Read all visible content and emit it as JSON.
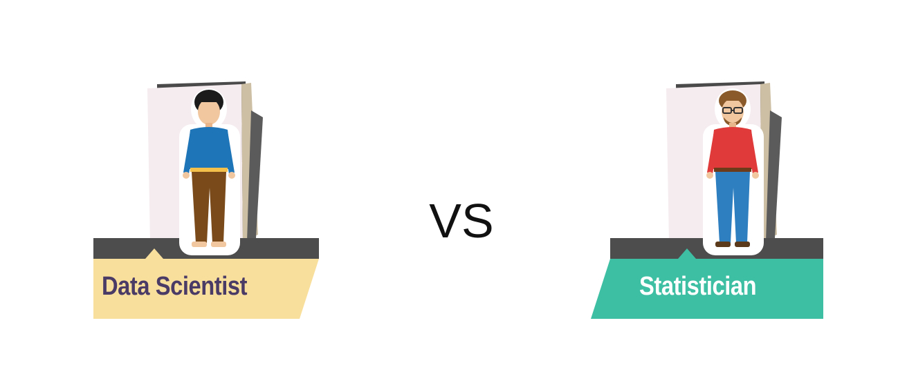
{
  "left_card": {
    "label": "Data Scientist",
    "label_bg": "#f9df9c",
    "label_color": "#4a3a66",
    "shirt_color": "#1e76b8",
    "pants_color": "#7a4a1a",
    "icon": "data-scientist-person-icon"
  },
  "separator": {
    "text": "VS"
  },
  "right_card": {
    "label": "Statistician",
    "label_bg": "#3dbfa3",
    "label_color": "#ffffff",
    "shirt_color": "#e03a3a",
    "pants_color": "#2e7fc0",
    "icon": "statistician-person-icon"
  }
}
